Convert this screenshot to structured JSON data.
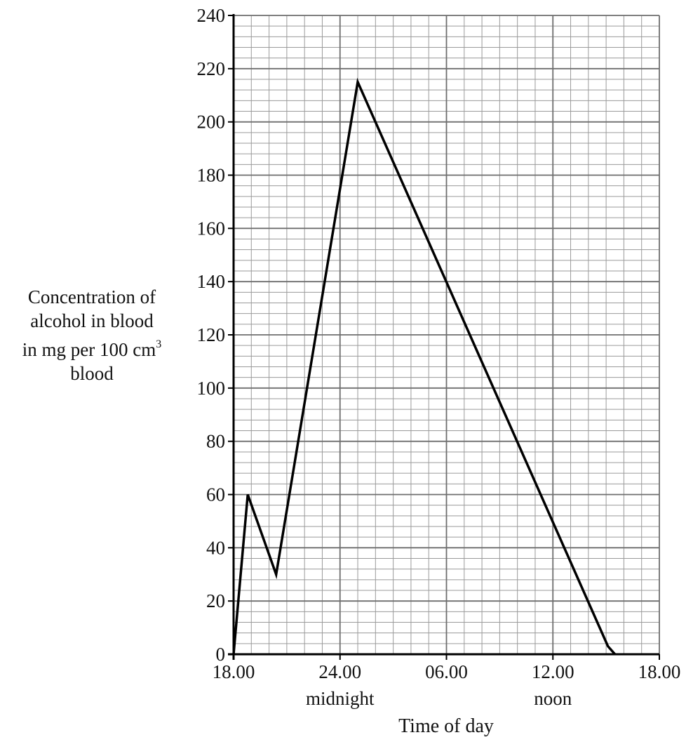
{
  "chart_data": {
    "type": "line",
    "xlabel": "Time of day",
    "ylabel_lines": [
      "Concentration of",
      "alcohol in blood",
      "in mg per 100 cm",
      "blood"
    ],
    "ylabel_superscript": "3",
    "x_ticks": [
      {
        "hours": 0,
        "label": "18.00",
        "sublabel": ""
      },
      {
        "hours": 6,
        "label": "24.00",
        "sublabel": "midnight"
      },
      {
        "hours": 12,
        "label": "06.00",
        "sublabel": ""
      },
      {
        "hours": 18,
        "label": "12.00",
        "sublabel": "noon"
      },
      {
        "hours": 24,
        "label": "18.00",
        "sublabel": ""
      }
    ],
    "xlim": [
      0,
      24
    ],
    "ylim": [
      0,
      240
    ],
    "y_ticks": [
      0,
      20,
      40,
      60,
      80,
      100,
      120,
      140,
      160,
      180,
      200,
      220,
      240
    ],
    "grid": true,
    "series": [
      {
        "points": [
          [
            0,
            0
          ],
          [
            0.8,
            60
          ],
          [
            2.4,
            30
          ],
          [
            7.0,
            215
          ],
          [
            21.1,
            3
          ],
          [
            21.5,
            0
          ]
        ]
      }
    ]
  }
}
